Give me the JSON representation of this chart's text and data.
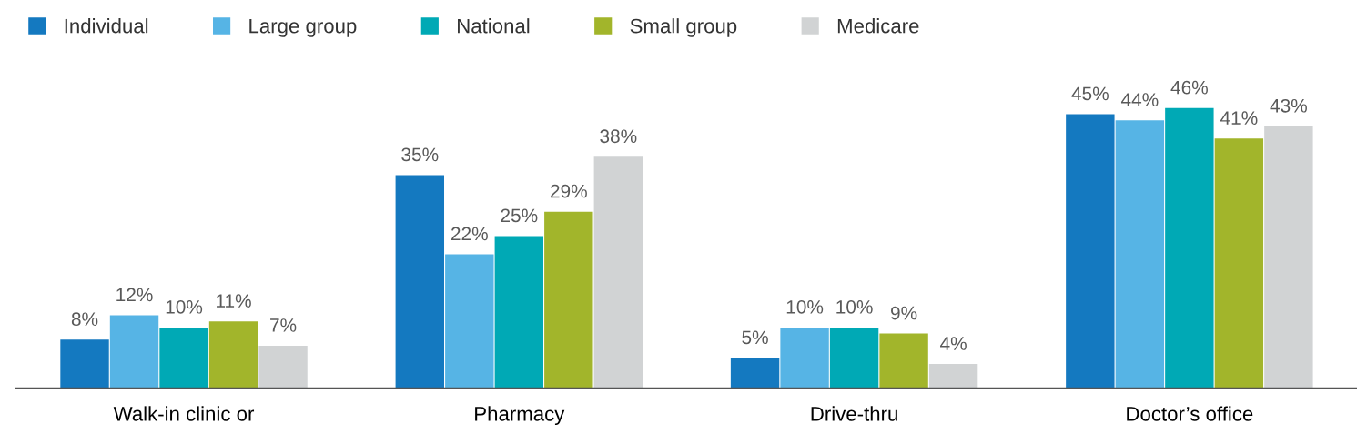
{
  "chart_data": {
    "type": "bar",
    "categories": [
      "Walk-in clinic or",
      "Pharmacy",
      "Drive-thru",
      "Doctor’s office"
    ],
    "series": [
      {
        "name": "Individual",
        "color": "#1479c0",
        "values": [
          8,
          35,
          5,
          45
        ],
        "value_labels": [
          "8%",
          "35%",
          "5%",
          "45%"
        ]
      },
      {
        "name": "Large group",
        "color": "#56b4e5",
        "values": [
          12,
          22,
          10,
          44
        ],
        "value_labels": [
          "12%",
          "22%",
          "10%",
          "44%"
        ]
      },
      {
        "name": "National",
        "color": "#00a9b5",
        "values": [
          10,
          25,
          10,
          46
        ],
        "value_labels": [
          "10%",
          "25%",
          "10%",
          "46%"
        ]
      },
      {
        "name": "Small group",
        "color": "#a2b52b",
        "values": [
          11,
          29,
          9,
          41
        ],
        "value_labels": [
          "11%",
          "29%",
          "9%",
          "41%"
        ]
      },
      {
        "name": "Medicare",
        "color": "#d1d3d4",
        "values": [
          7,
          38,
          4,
          43
        ],
        "value_labels": [
          "7%",
          "38%",
          "4%",
          "43%"
        ]
      }
    ],
    "legend": "top left",
    "grid": false,
    "tick_labels": "x"
  }
}
